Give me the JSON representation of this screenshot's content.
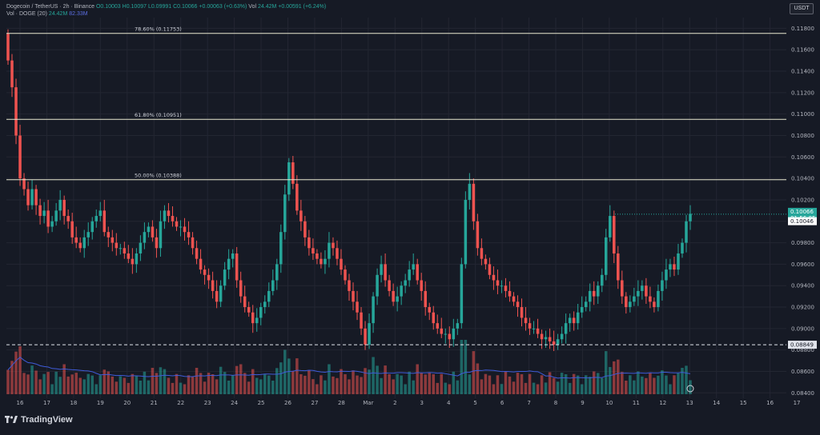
{
  "header": {
    "symbol": "Dogecoin / TetherUS · 2h · Binance",
    "ohlc": "O0.10003  H0.10097  L0.09991  C0.10066  +0.00063 (+0.63%)",
    "volume_label": "Vol",
    "volume_value": "24.42M",
    "change": "+0.00591 (+6.24%)",
    "vol_line_label": "Vol · DOGE (20)",
    "vol_line_value": "24.42M",
    "vol_line_ma": "82.33M"
  },
  "currency_button": "USDT",
  "price_axis": {
    "labels": [
      "0.11800",
      "0.11600",
      "0.11400",
      "0.11200",
      "0.11000",
      "0.10800",
      "0.10600",
      "0.10400",
      "0.10200",
      "0.10000",
      "0.09800",
      "0.09600",
      "0.09400",
      "0.09200",
      "0.09000",
      "0.08800",
      "0.08600",
      "0.08400"
    ]
  },
  "time_axis": {
    "labels": [
      "16",
      "17",
      "18",
      "19",
      "20",
      "21",
      "22",
      "23",
      "24",
      "25",
      "26",
      "27",
      "28",
      "Mar",
      "2",
      "3",
      "4",
      "5",
      "6",
      "7",
      "8",
      "9",
      "10",
      "11",
      "12",
      "13",
      "14",
      "15",
      "16",
      "17"
    ]
  },
  "fib_levels": [
    {
      "label": "78.60% (0.11753)",
      "price": 0.11753
    },
    {
      "label": "61.80% (0.10951)",
      "price": 0.10951
    },
    {
      "label": "50.00% (0.10388)",
      "price": 0.10388
    }
  ],
  "support_level": {
    "price": 0.08849,
    "label": "0.08849"
  },
  "last_price_badge": {
    "price": "0.10066",
    "countdown": "01:56:05"
  },
  "prev_price_badge": {
    "price": "0.10046"
  },
  "colors": {
    "up": "#26a69a",
    "down": "#ef5350",
    "fib": "#e8e8d0",
    "ma": "#3f5bd8",
    "bg": "#161a25",
    "grid": "#232632"
  },
  "footer_logo": "TradingView",
  "chart_data": {
    "type": "candlestick",
    "title": "Dogecoin / TetherUS · 2h · Binance",
    "currency": "USDT",
    "y_range": [
      0.0835,
      0.119
    ],
    "x_range_days": [
      "Feb 15",
      "Mar 17"
    ],
    "close_series": [
      0.115,
      0.1125,
      0.108,
      0.104,
      0.103,
      0.1015,
      0.103,
      0.1015,
      0.1005,
      0.101,
      0.0995,
      0.1,
      0.101,
      0.102,
      0.1005,
      0.1,
      0.0985,
      0.098,
      0.0975,
      0.0985,
      0.099,
      0.1,
      0.1005,
      0.101,
      0.099,
      0.0985,
      0.098,
      0.0975,
      0.0975,
      0.097,
      0.0965,
      0.096,
      0.097,
      0.098,
      0.099,
      0.0995,
      0.0985,
      0.0975,
      0.1,
      0.101,
      0.1005,
      0.1,
      0.0995,
      0.0995,
      0.099,
      0.0985,
      0.0975,
      0.0965,
      0.0955,
      0.095,
      0.0945,
      0.0935,
      0.0925,
      0.094,
      0.0955,
      0.0965,
      0.097,
      0.0945,
      0.093,
      0.092,
      0.0915,
      0.0905,
      0.091,
      0.092,
      0.0925,
      0.0935,
      0.0945,
      0.096,
      0.099,
      0.1025,
      0.1055,
      0.1035,
      0.101,
      0.1,
      0.0985,
      0.0975,
      0.097,
      0.0965,
      0.096,
      0.0965,
      0.098,
      0.0975,
      0.0965,
      0.0955,
      0.0945,
      0.0935,
      0.0925,
      0.0915,
      0.09,
      0.0885,
      0.0905,
      0.093,
      0.095,
      0.096,
      0.0945,
      0.0935,
      0.0925,
      0.093,
      0.094,
      0.0945,
      0.0955,
      0.096,
      0.0945,
      0.0935,
      0.092,
      0.0915,
      0.0905,
      0.09,
      0.0895,
      0.0895,
      0.089,
      0.09,
      0.0905,
      0.096,
      0.102,
      0.1035,
      0.1,
      0.0975,
      0.0965,
      0.096,
      0.095,
      0.0945,
      0.094,
      0.094,
      0.0935,
      0.093,
      0.0925,
      0.092,
      0.091,
      0.0905,
      0.09,
      0.09,
      0.0895,
      0.089,
      0.0892,
      0.0888,
      0.0885,
      0.089,
      0.0895,
      0.0905,
      0.091,
      0.0905,
      0.0915,
      0.092,
      0.0925,
      0.0935,
      0.093,
      0.094,
      0.095,
      0.0985,
      0.1005,
      0.097,
      0.0945,
      0.093,
      0.092,
      0.0925,
      0.093,
      0.0935,
      0.094,
      0.093,
      0.0925,
      0.092,
      0.0935,
      0.0945,
      0.0955,
      0.096,
      0.0955,
      0.097,
      0.098,
      0.1,
      0.1007
    ],
    "volume_ma_label": "Vol · DOGE (20)"
  }
}
